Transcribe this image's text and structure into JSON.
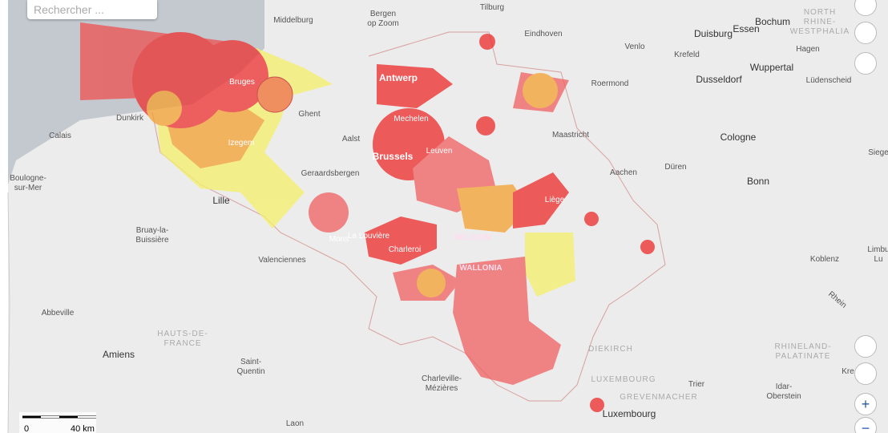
{
  "search": {
    "placeholder": "Rechercher ..."
  },
  "places": [
    {
      "lines": [
        "Middelburg"
      ]
    },
    {
      "lines": [
        "Bergen",
        "op Zoom"
      ]
    },
    {
      "lines": [
        "Tilburg"
      ]
    },
    {
      "lines": [
        "Eindhoven"
      ]
    },
    {
      "lines": [
        "Venlo"
      ]
    },
    {
      "lines": [
        "Bochum"
      ]
    },
    {
      "lines": [
        "Essen"
      ]
    },
    {
      "lines": [
        "NORTH",
        "RHINE-",
        "WESTPHALIA"
      ]
    },
    {
      "lines": [
        "Duisburg"
      ]
    },
    {
      "lines": [
        "Krefeld"
      ]
    },
    {
      "lines": [
        "Hagen"
      ]
    },
    {
      "lines": [
        "Wuppertal"
      ]
    },
    {
      "lines": [
        "Dusseldorf"
      ]
    },
    {
      "lines": [
        "Lüdenscheid"
      ]
    },
    {
      "lines": [
        "Roermond"
      ]
    },
    {
      "lines": [
        "Antwerp"
      ]
    },
    {
      "lines": [
        "Bruges"
      ]
    },
    {
      "lines": [
        "Ghent"
      ]
    },
    {
      "lines": [
        "Dunkirk"
      ]
    },
    {
      "lines": [
        "Calais"
      ]
    },
    {
      "lines": [
        "Mechelen"
      ]
    },
    {
      "lines": [
        "Aalst"
      ]
    },
    {
      "lines": [
        "Izegem"
      ]
    },
    {
      "lines": [
        "Maastricht"
      ]
    },
    {
      "lines": [
        "Cologne"
      ]
    },
    {
      "lines": [
        "Siege"
      ]
    },
    {
      "lines": [
        "Brussels"
      ]
    },
    {
      "lines": [
        "Leuven"
      ]
    },
    {
      "lines": [
        "Geraardsbergen"
      ]
    },
    {
      "lines": [
        "Aachen"
      ]
    },
    {
      "lines": [
        "Düren"
      ]
    },
    {
      "lines": [
        "Boulogne-",
        "sur-Mer"
      ]
    },
    {
      "lines": [
        "Bonn"
      ]
    },
    {
      "lines": [
        "Lille"
      ]
    },
    {
      "lines": [
        "Liège"
      ]
    },
    {
      "lines": [
        "Bruay-la-",
        "Buissière"
      ]
    },
    {
      "lines": [
        "BELGIUM"
      ]
    },
    {
      "lines": [
        "La Louvière"
      ]
    },
    {
      "lines": [
        "Mons"
      ]
    },
    {
      "lines": [
        "Charleroi"
      ]
    },
    {
      "lines": [
        "Valenciennes"
      ]
    },
    {
      "lines": [
        "Koblenz"
      ]
    },
    {
      "lines": [
        "Limbu",
        "Lu"
      ]
    },
    {
      "lines": [
        "WALLONIA"
      ]
    },
    {
      "lines": [
        "Abbeville"
      ]
    },
    {
      "lines": [
        "Rhein"
      ]
    },
    {
      "lines": [
        "HAUTS-DE-",
        "FRANCE"
      ]
    },
    {
      "lines": [
        "RHINELAND-",
        "PALATINATE"
      ]
    },
    {
      "lines": [
        "DIEKIRCH"
      ]
    },
    {
      "lines": [
        "Amiens"
      ]
    },
    {
      "lines": [
        "Saint-",
        "Quentin"
      ]
    },
    {
      "lines": [
        "Kre"
      ]
    },
    {
      "lines": [
        "Charleville-",
        "Mézières"
      ]
    },
    {
      "lines": [
        "LUXEMBOURG"
      ]
    },
    {
      "lines": [
        "Trier"
      ]
    },
    {
      "lines": [
        "Idar-",
        "Oberstein"
      ]
    },
    {
      "lines": [
        "GREVENMACHER"
      ]
    },
    {
      "lines": [
        "Luxembourg"
      ]
    },
    {
      "lines": [
        "Laon"
      ]
    }
  ],
  "scale": {
    "labels": [
      "0",
      "40 km"
    ]
  },
  "zoom": {
    "in": "+",
    "out": "−"
  }
}
